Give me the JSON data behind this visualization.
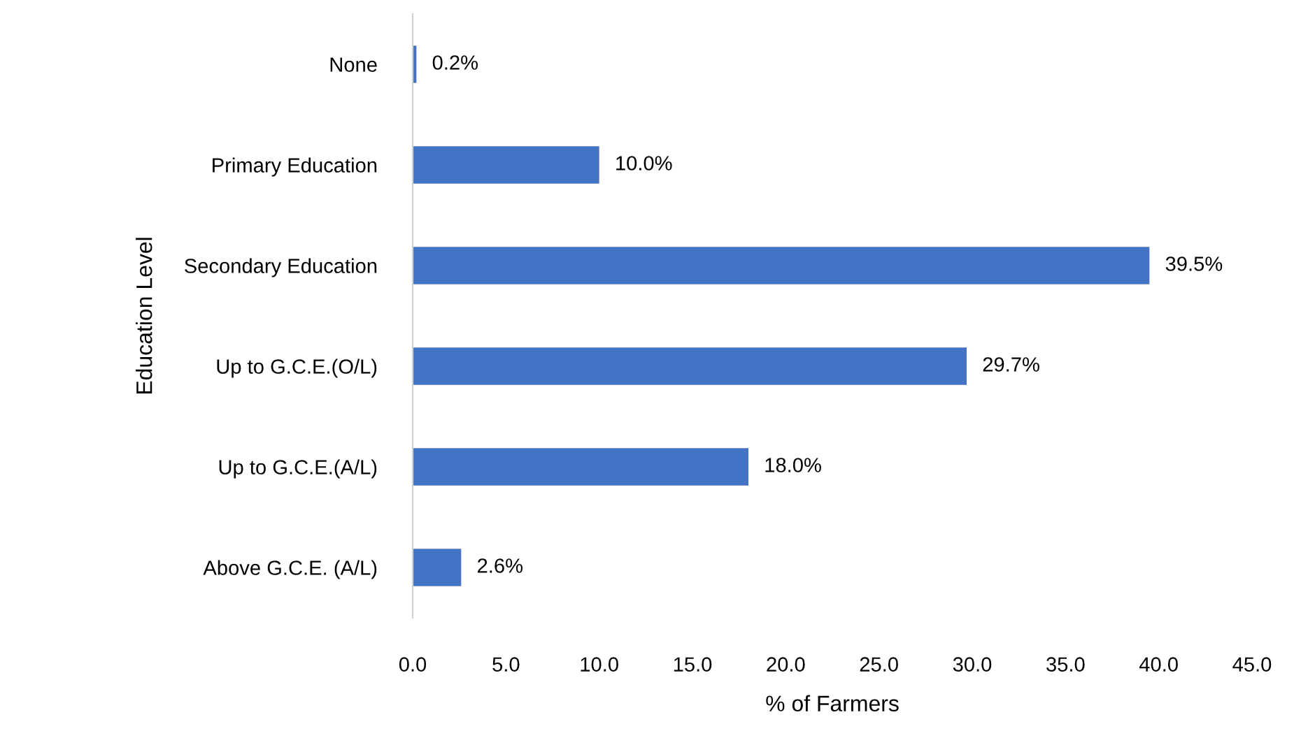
{
  "chart_data": {
    "type": "bar",
    "orientation": "horizontal",
    "xlabel": "% of Farmers",
    "ylabel": "Education Level",
    "categories": [
      "None",
      "Primary Education",
      "Secondary Education",
      "Up to G.C.E.(O/L)",
      "Up to G.C.E.(A/L)",
      "Above G.C.E. (A/L)"
    ],
    "values": [
      0.2,
      10.0,
      39.5,
      29.7,
      18.0,
      2.6
    ],
    "value_labels": [
      "0.2%",
      "10.0%",
      "39.5%",
      "29.7%",
      "18.0%",
      "2.6%"
    ],
    "color": "#4472c4",
    "xlim": [
      0,
      45
    ],
    "xticks": [
      {
        "value": 0,
        "label": "0.0"
      },
      {
        "value": 5,
        "label": "5.0"
      },
      {
        "value": 10,
        "label": "10.0"
      },
      {
        "value": 15,
        "label": "15.0"
      },
      {
        "value": 20,
        "label": "20.0"
      },
      {
        "value": 25,
        "label": "25.0"
      },
      {
        "value": 30,
        "label": "30.0"
      },
      {
        "value": 35,
        "label": "35.0"
      },
      {
        "value": 40,
        "label": "40.0"
      },
      {
        "value": 45,
        "label": "45.0"
      }
    ],
    "grid": false
  }
}
